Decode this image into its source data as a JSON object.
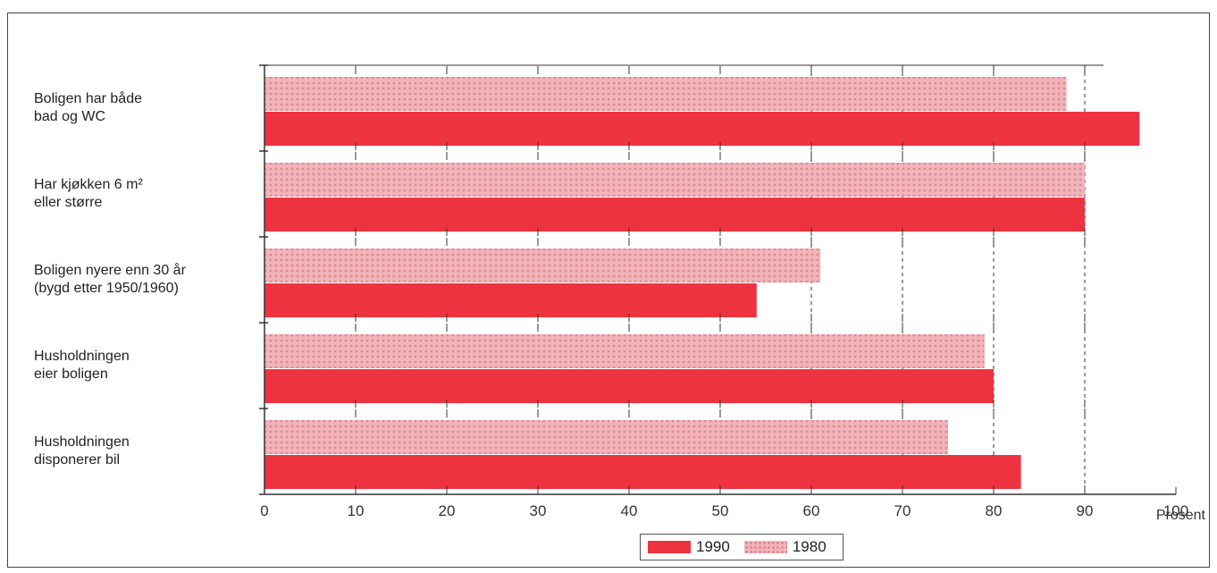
{
  "chart_data": {
    "type": "bar",
    "orientation": "horizontal",
    "categories": [
      [
        "Boligen har både",
        "bad og WC"
      ],
      [
        "Har kjøkken 6 m²",
        "eller større"
      ],
      [
        "Boligen nyere enn 30 år",
        "(bygd etter 1950/1960)"
      ],
      [
        "Husholdningen",
        "eier boligen"
      ],
      [
        "Husholdningen",
        "disponerer bil"
      ]
    ],
    "series": [
      {
        "name": "1980",
        "values": [
          88,
          90,
          61,
          79,
          75
        ]
      },
      {
        "name": "1990",
        "values": [
          96,
          90,
          54,
          80,
          83
        ]
      }
    ],
    "xlim": [
      0,
      100
    ],
    "xticks": [
      0,
      10,
      20,
      30,
      40,
      50,
      60,
      70,
      80,
      90,
      100
    ],
    "xlabel": "Prosent",
    "grid_dashed_at": [
      60,
      70,
      80,
      90
    ],
    "legend_position": "bottom-center",
    "colors": {
      "1990": "#ee3340",
      "1980": "#f2b4ba",
      "1980_dots": "#d98a92"
    }
  },
  "legend": {
    "label_a": "1990",
    "label_b": "1980"
  }
}
